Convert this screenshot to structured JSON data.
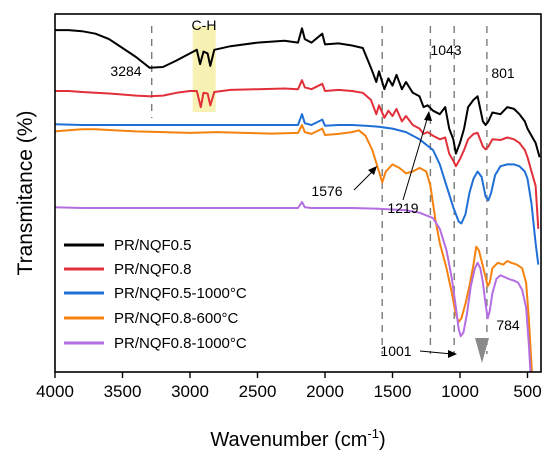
{
  "chart_data": {
    "type": "line",
    "xlabel": "Wavenumber (",
    "xlabel_unit": "cm",
    "xlabel_sup": "-1",
    "xlabel_close": ")",
    "ylabel": "Transmitance (%)",
    "xlim": [
      4000,
      400
    ],
    "x_reversed": true,
    "xticks": [
      4000,
      3500,
      3000,
      2500,
      2000,
      1500,
      1000,
      500
    ],
    "y_ticks_shown": false,
    "grid": false,
    "legend_position": "bottom-left",
    "series": [
      {
        "name": "PR/NQF0.5",
        "color": "#000000",
        "points": [
          [
            4000,
            0.955
          ],
          [
            3900,
            0.955
          ],
          [
            3800,
            0.952
          ],
          [
            3700,
            0.945
          ],
          [
            3600,
            0.93
          ],
          [
            3500,
            0.905
          ],
          [
            3400,
            0.88
          ],
          [
            3300,
            0.85
          ],
          [
            3200,
            0.852
          ],
          [
            3100,
            0.87
          ],
          [
            3000,
            0.89
          ],
          [
            2950,
            0.9
          ],
          [
            2925,
            0.86
          ],
          [
            2900,
            0.895
          ],
          [
            2870,
            0.89
          ],
          [
            2850,
            0.855
          ],
          [
            2820,
            0.9
          ],
          [
            2700,
            0.91
          ],
          [
            2500,
            0.92
          ],
          [
            2300,
            0.925
          ],
          [
            2200,
            0.92
          ],
          [
            2170,
            0.96
          ],
          [
            2150,
            0.93
          ],
          [
            2100,
            0.92
          ],
          [
            2020,
            0.945
          ],
          [
            2000,
            0.915
          ],
          [
            1900,
            0.918
          ],
          [
            1800,
            0.912
          ],
          [
            1720,
            0.905
          ],
          [
            1660,
            0.85
          ],
          [
            1620,
            0.81
          ],
          [
            1600,
            0.84
          ],
          [
            1560,
            0.79
          ],
          [
            1530,
            0.82
          ],
          [
            1500,
            0.8
          ],
          [
            1470,
            0.83
          ],
          [
            1430,
            0.79
          ],
          [
            1400,
            0.81
          ],
          [
            1350,
            0.78
          ],
          [
            1300,
            0.77
          ],
          [
            1270,
            0.74
          ],
          [
            1240,
            0.745
          ],
          [
            1200,
            0.73
          ],
          [
            1150,
            0.72
          ],
          [
            1110,
            0.74
          ],
          [
            1080,
            0.68
          ],
          [
            1050,
            0.65
          ],
          [
            1030,
            0.61
          ],
          [
            1000,
            0.64
          ],
          [
            970,
            0.68
          ],
          [
            940,
            0.74
          ],
          [
            900,
            0.76
          ],
          [
            870,
            0.77
          ],
          [
            830,
            0.7
          ],
          [
            810,
            0.69
          ],
          [
            790,
            0.7
          ],
          [
            760,
            0.725
          ],
          [
            700,
            0.72
          ],
          [
            650,
            0.74
          ],
          [
            600,
            0.735
          ],
          [
            560,
            0.72
          ],
          [
            520,
            0.7
          ],
          [
            500,
            0.68
          ],
          [
            470,
            0.66
          ],
          [
            440,
            0.64
          ],
          [
            410,
            0.6
          ]
        ]
      },
      {
        "name": "PR/NQF0.8",
        "color": "#e2303b",
        "points": [
          [
            4000,
            0.785
          ],
          [
            3900,
            0.785
          ],
          [
            3800,
            0.782
          ],
          [
            3700,
            0.78
          ],
          [
            3600,
            0.778
          ],
          [
            3500,
            0.775
          ],
          [
            3400,
            0.772
          ],
          [
            3300,
            0.77
          ],
          [
            3200,
            0.772
          ],
          [
            3100,
            0.78
          ],
          [
            3000,
            0.785
          ],
          [
            2950,
            0.785
          ],
          [
            2920,
            0.74
          ],
          [
            2900,
            0.78
          ],
          [
            2870,
            0.778
          ],
          [
            2850,
            0.745
          ],
          [
            2820,
            0.782
          ],
          [
            2700,
            0.788
          ],
          [
            2500,
            0.79
          ],
          [
            2300,
            0.792
          ],
          [
            2200,
            0.79
          ],
          [
            2170,
            0.815
          ],
          [
            2150,
            0.795
          ],
          [
            2100,
            0.79
          ],
          [
            2020,
            0.805
          ],
          [
            2000,
            0.785
          ],
          [
            1900,
            0.788
          ],
          [
            1800,
            0.785
          ],
          [
            1720,
            0.78
          ],
          [
            1660,
            0.76
          ],
          [
            1620,
            0.72
          ],
          [
            1600,
            0.745
          ],
          [
            1560,
            0.71
          ],
          [
            1530,
            0.73
          ],
          [
            1500,
            0.715
          ],
          [
            1470,
            0.735
          ],
          [
            1430,
            0.7
          ],
          [
            1400,
            0.715
          ],
          [
            1350,
            0.69
          ],
          [
            1300,
            0.68
          ],
          [
            1270,
            0.665
          ],
          [
            1240,
            0.67
          ],
          [
            1200,
            0.66
          ],
          [
            1150,
            0.65
          ],
          [
            1110,
            0.655
          ],
          [
            1080,
            0.61
          ],
          [
            1050,
            0.59
          ],
          [
            1030,
            0.575
          ],
          [
            1000,
            0.595
          ],
          [
            970,
            0.62
          ],
          [
            940,
            0.65
          ],
          [
            900,
            0.665
          ],
          [
            870,
            0.668
          ],
          [
            830,
            0.63
          ],
          [
            810,
            0.622
          ],
          [
            790,
            0.63
          ],
          [
            760,
            0.65
          ],
          [
            700,
            0.648
          ],
          [
            650,
            0.655
          ],
          [
            600,
            0.65
          ],
          [
            560,
            0.64
          ],
          [
            520,
            0.62
          ],
          [
            500,
            0.6
          ],
          [
            470,
            0.56
          ],
          [
            440,
            0.52
          ],
          [
            420,
            0.4
          ]
        ]
      },
      {
        "name": "PR/NQF0.5-1000°C",
        "color": "#1f6fd6",
        "points": [
          [
            4000,
            0.692
          ],
          [
            3800,
            0.69
          ],
          [
            3600,
            0.69
          ],
          [
            3400,
            0.69
          ],
          [
            3200,
            0.69
          ],
          [
            3000,
            0.69
          ],
          [
            2800,
            0.69
          ],
          [
            2600,
            0.69
          ],
          [
            2400,
            0.69
          ],
          [
            2200,
            0.69
          ],
          [
            2170,
            0.72
          ],
          [
            2150,
            0.695
          ],
          [
            2100,
            0.69
          ],
          [
            2020,
            0.705
          ],
          [
            2000,
            0.688
          ],
          [
            1900,
            0.69
          ],
          [
            1800,
            0.69
          ],
          [
            1700,
            0.688
          ],
          [
            1600,
            0.685
          ],
          [
            1500,
            0.68
          ],
          [
            1400,
            0.67
          ],
          [
            1300,
            0.65
          ],
          [
            1200,
            0.62
          ],
          [
            1150,
            0.58
          ],
          [
            1100,
            0.52
          ],
          [
            1050,
            0.46
          ],
          [
            1010,
            0.42
          ],
          [
            990,
            0.415
          ],
          [
            960,
            0.44
          ],
          [
            930,
            0.5
          ],
          [
            900,
            0.54
          ],
          [
            870,
            0.56
          ],
          [
            840,
            0.545
          ],
          [
            810,
            0.49
          ],
          [
            790,
            0.48
          ],
          [
            770,
            0.5
          ],
          [
            740,
            0.55
          ],
          [
            700,
            0.575
          ],
          [
            650,
            0.58
          ],
          [
            600,
            0.58
          ],
          [
            560,
            0.575
          ],
          [
            520,
            0.56
          ],
          [
            500,
            0.54
          ],
          [
            470,
            0.47
          ],
          [
            440,
            0.36
          ],
          [
            420,
            0.3
          ]
        ]
      },
      {
        "name": "PR/NQF0.8-600°C",
        "color": "#f5820f",
        "points": [
          [
            4000,
            0.672
          ],
          [
            3900,
            0.675
          ],
          [
            3800,
            0.678
          ],
          [
            3700,
            0.678
          ],
          [
            3600,
            0.676
          ],
          [
            3400,
            0.672
          ],
          [
            3200,
            0.67
          ],
          [
            3000,
            0.668
          ],
          [
            2800,
            0.67
          ],
          [
            2600,
            0.668
          ],
          [
            2400,
            0.666
          ],
          [
            2200,
            0.668
          ],
          [
            2170,
            0.69
          ],
          [
            2150,
            0.67
          ],
          [
            2100,
            0.665
          ],
          [
            2020,
            0.68
          ],
          [
            2000,
            0.662
          ],
          [
            1900,
            0.665
          ],
          [
            1800,
            0.67
          ],
          [
            1750,
            0.675
          ],
          [
            1700,
            0.66
          ],
          [
            1650,
            0.62
          ],
          [
            1600,
            0.56
          ],
          [
            1576,
            0.53
          ],
          [
            1550,
            0.56
          ],
          [
            1500,
            0.58
          ],
          [
            1450,
            0.57
          ],
          [
            1400,
            0.555
          ],
          [
            1350,
            0.56
          ],
          [
            1300,
            0.57
          ],
          [
            1250,
            0.56
          ],
          [
            1219,
            0.52
          ],
          [
            1180,
            0.42
          ],
          [
            1150,
            0.36
          ],
          [
            1100,
            0.29
          ],
          [
            1060,
            0.22
          ],
          [
            1030,
            0.16
          ],
          [
            1010,
            0.14
          ],
          [
            990,
            0.15
          ],
          [
            960,
            0.19
          ],
          [
            930,
            0.24
          ],
          [
            900,
            0.3
          ],
          [
            880,
            0.35
          ],
          [
            860,
            0.34
          ],
          [
            840,
            0.31
          ],
          [
            810,
            0.265
          ],
          [
            795,
            0.24
          ],
          [
            780,
            0.25
          ],
          [
            760,
            0.29
          ],
          [
            720,
            0.305
          ],
          [
            680,
            0.3
          ],
          [
            650,
            0.31
          ],
          [
            620,
            0.305
          ],
          [
            580,
            0.3
          ],
          [
            540,
            0.29
          ],
          [
            510,
            0.25
          ],
          [
            490,
            0.15
          ],
          [
            470,
            0.02
          ],
          [
            460,
            -0.05
          ]
        ]
      },
      {
        "name": "PR/NQF0.8-1000°C",
        "color": "#b46ee2",
        "points": [
          [
            4000,
            0.46
          ],
          [
            3800,
            0.458
          ],
          [
            3600,
            0.458
          ],
          [
            3400,
            0.458
          ],
          [
            3200,
            0.458
          ],
          [
            3000,
            0.458
          ],
          [
            2800,
            0.458
          ],
          [
            2600,
            0.458
          ],
          [
            2400,
            0.458
          ],
          [
            2200,
            0.458
          ],
          [
            2170,
            0.475
          ],
          [
            2150,
            0.46
          ],
          [
            2100,
            0.458
          ],
          [
            2000,
            0.458
          ],
          [
            1800,
            0.458
          ],
          [
            1600,
            0.456
          ],
          [
            1400,
            0.452
          ],
          [
            1300,
            0.445
          ],
          [
            1200,
            0.43
          ],
          [
            1150,
            0.4
          ],
          [
            1100,
            0.34
          ],
          [
            1060,
            0.26
          ],
          [
            1030,
            0.18
          ],
          [
            1010,
            0.12
          ],
          [
            995,
            0.1
          ],
          [
            975,
            0.11
          ],
          [
            950,
            0.16
          ],
          [
            920,
            0.24
          ],
          [
            890,
            0.29
          ],
          [
            870,
            0.305
          ],
          [
            850,
            0.29
          ],
          [
            830,
            0.25
          ],
          [
            810,
            0.19
          ],
          [
            795,
            0.15
          ],
          [
            780,
            0.17
          ],
          [
            760,
            0.22
          ],
          [
            730,
            0.26
          ],
          [
            700,
            0.27
          ],
          [
            670,
            0.265
          ],
          [
            640,
            0.26
          ],
          [
            600,
            0.255
          ],
          [
            570,
            0.25
          ],
          [
            540,
            0.23
          ],
          [
            510,
            0.18
          ],
          [
            490,
            0.08
          ],
          [
            470,
            -0.05
          ]
        ]
      }
    ],
    "annotations": {
      "dashed_lines_at": [
        3284,
        1576,
        1219,
        1043,
        801
      ],
      "highlight_band": [
        2980,
        2810
      ],
      "labels": {
        "peak_3284": "3284",
        "peak_ch": "C-H",
        "peak_1043": "1043",
        "peak_801": "801",
        "peak_1576": "1576",
        "peak_1219": "1219",
        "peak_1001": "1001",
        "peak_784": "784"
      }
    }
  }
}
